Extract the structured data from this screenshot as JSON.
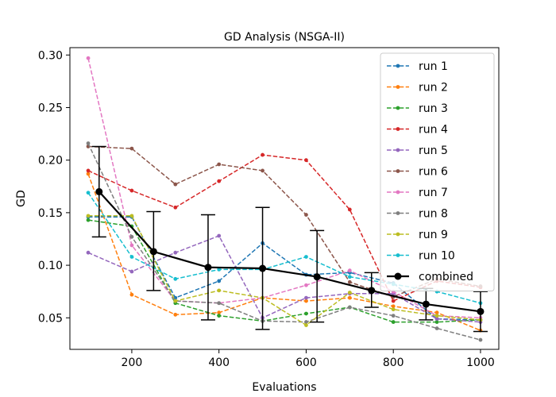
{
  "chart_data": {
    "type": "line",
    "title": "GD Analysis (NSGA-II)",
    "xlabel": "Evaluations",
    "ylabel": "GD",
    "xlim": [
      58,
      1042
    ],
    "ylim": [
      0.02,
      0.307
    ],
    "xticks": [
      200,
      400,
      600,
      800,
      1000
    ],
    "yticks": [
      0.05,
      0.1,
      0.15,
      0.2,
      0.25,
      0.3
    ],
    "xtick_labels": [
      "200",
      "400",
      "600",
      "800",
      "1000"
    ],
    "ytick_labels": [
      "0.05",
      "0.10",
      "0.15",
      "0.20",
      "0.25",
      "0.30"
    ],
    "grid": false,
    "legend_position": "upper right",
    "x": [
      100,
      200,
      300,
      400,
      500,
      600,
      700,
      800,
      900,
      1000
    ],
    "series": [
      {
        "name": "run 1",
        "color": "#1f77b4",
        "style": "dashed",
        "values": [
          0.146,
          0.146,
          0.069,
          0.085,
          0.121,
          0.091,
          0.093,
          0.083,
          0.049,
          0.048
        ]
      },
      {
        "name": "run 2",
        "color": "#ff7f0e",
        "style": "dashed",
        "values": [
          0.187,
          0.072,
          0.053,
          0.055,
          0.069,
          0.066,
          0.069,
          0.061,
          0.055,
          0.038
        ]
      },
      {
        "name": "run 3",
        "color": "#2ca02c",
        "style": "dashed",
        "values": [
          0.143,
          0.137,
          0.064,
          0.052,
          0.047,
          0.054,
          0.06,
          0.046,
          0.046,
          0.048
        ]
      },
      {
        "name": "run 4",
        "color": "#d62728",
        "style": "dashed",
        "values": [
          0.19,
          0.171,
          0.155,
          0.18,
          0.205,
          0.2,
          0.153,
          0.066,
          0.085,
          0.079
        ]
      },
      {
        "name": "run 5",
        "color": "#9467bd",
        "style": "dashed",
        "values": [
          0.112,
          0.094,
          0.112,
          0.128,
          0.05,
          0.069,
          0.073,
          0.073,
          0.049,
          0.046
        ]
      },
      {
        "name": "run 6",
        "color": "#8c564b",
        "style": "dashed",
        "values": [
          0.213,
          0.211,
          0.177,
          0.196,
          0.19,
          0.148,
          0.084,
          0.07,
          0.087,
          0.08
        ]
      },
      {
        "name": "run 7",
        "color": "#e377c2",
        "style": "dashed",
        "values": [
          0.297,
          0.119,
          0.066,
          0.064,
          0.069,
          0.081,
          0.095,
          0.075,
          0.052,
          0.05
        ]
      },
      {
        "name": "run 8",
        "color": "#7f7f7f",
        "style": "dashed",
        "values": [
          0.216,
          0.127,
          0.066,
          0.064,
          0.047,
          0.046,
          0.06,
          0.052,
          0.04,
          0.029
        ]
      },
      {
        "name": "run 9",
        "color": "#bcbd22",
        "style": "dashed",
        "values": [
          0.147,
          0.147,
          0.066,
          0.076,
          0.069,
          0.043,
          0.074,
          0.058,
          0.052,
          0.048
        ]
      },
      {
        "name": "run 10",
        "color": "#17becf",
        "style": "dashed",
        "values": [
          0.169,
          0.108,
          0.087,
          0.096,
          0.096,
          0.108,
          0.089,
          0.082,
          0.075,
          0.064
        ]
      }
    ],
    "combined": {
      "name": "combined",
      "color": "#000000",
      "x": [
        125,
        250,
        375,
        500,
        625,
        750,
        875,
        1000
      ],
      "values": [
        0.17,
        0.113,
        0.098,
        0.097,
        0.089,
        0.076,
        0.063,
        0.056
      ],
      "err_low": [
        0.127,
        0.076,
        0.048,
        0.039,
        0.046,
        0.06,
        0.048,
        0.037
      ],
      "err_high": [
        0.213,
        0.151,
        0.148,
        0.155,
        0.133,
        0.093,
        0.078,
        0.075
      ]
    }
  }
}
